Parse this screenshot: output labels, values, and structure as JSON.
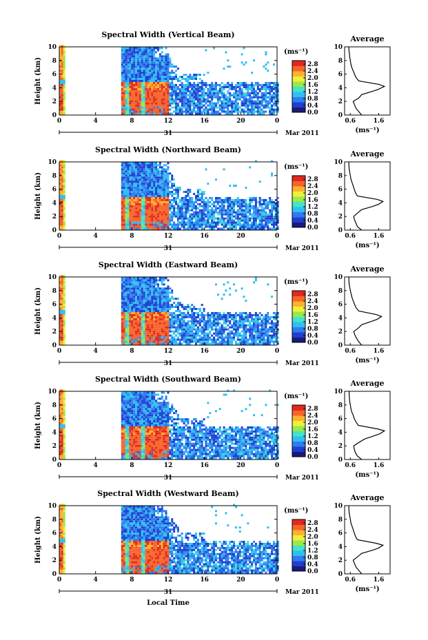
{
  "figure": {
    "xlabel": "Local Time",
    "day_label": "31",
    "month_label": "Mar 2011",
    "ylabel": "Height (km)",
    "unit_label": "(ms⁻¹)",
    "avg_title": "Average",
    "avg_xlabel": "(ms⁻¹)"
  },
  "chart_data": [
    {
      "type": "heatmap",
      "title": "Spectral Width (Vertical Beam)",
      "x_ticks": [
        "0",
        "4",
        "8",
        "12",
        "16",
        "20",
        "0"
      ],
      "xlim": [
        0,
        24
      ],
      "y_ticks": [
        "0",
        "2",
        "4",
        "6",
        "8",
        "10"
      ],
      "ylim": [
        0,
        10
      ],
      "colorbar": {
        "ticks": [
          "0.0",
          "0.4",
          "0.8",
          "1.2",
          "1.6",
          "2.0",
          "2.4",
          "2.8"
        ],
        "range": [
          0,
          3.0
        ]
      },
      "colorscale": [
        "#1a1a7a",
        "#1f3fd0",
        "#2f7cf0",
        "#2fbff2",
        "#44e2c8",
        "#9ae84a",
        "#eef03a",
        "#ffb030",
        "#f86428",
        "#e02a20"
      ],
      "average_profile": {
        "title": "Average",
        "x_ticks": [
          "0.6",
          "1.6"
        ],
        "xlim": [
          0.4,
          2.0
        ],
        "height_km": [
          0,
          0.5,
          1.0,
          1.5,
          2.0,
          2.5,
          3.0,
          3.5,
          3.8,
          4.2,
          4.5,
          5.0,
          5.5,
          6.0,
          6.5,
          7.0,
          7.5,
          8.0,
          8.5,
          9.0,
          9.5,
          10.0
        ],
        "width": [
          1.0,
          0.9,
          0.8,
          0.75,
          0.7,
          0.9,
          1.0,
          1.4,
          1.6,
          1.8,
          1.6,
          0.9,
          0.8,
          0.75,
          0.7,
          0.65,
          0.62,
          0.6,
          0.58,
          0.57,
          0.55,
          0.55
        ]
      }
    },
    {
      "type": "heatmap",
      "title": "Spectral Width (Northward Beam)",
      "x_ticks": [
        "0",
        "4",
        "8",
        "12",
        "16",
        "20",
        "0"
      ],
      "xlim": [
        0,
        24
      ],
      "y_ticks": [
        "0",
        "2",
        "4",
        "6",
        "8",
        "10"
      ],
      "ylim": [
        0,
        10
      ],
      "colorbar": {
        "ticks": [
          "0.0",
          "0.4",
          "0.8",
          "1.2",
          "1.6",
          "2.0",
          "2.4",
          "2.8"
        ],
        "range": [
          0,
          3.0
        ]
      },
      "colorscale": [
        "#1a1a7a",
        "#1f3fd0",
        "#2f7cf0",
        "#2fbff2",
        "#44e2c8",
        "#9ae84a",
        "#eef03a",
        "#ffb030",
        "#f86428",
        "#e02a20"
      ],
      "average_profile": {
        "title": "Average",
        "x_ticks": [
          "0.6",
          "1.6"
        ],
        "xlim": [
          0.4,
          2.0
        ],
        "height_km": [
          0,
          0.5,
          1.0,
          1.5,
          2.0,
          2.5,
          3.0,
          3.5,
          3.8,
          4.2,
          4.5,
          5.0,
          5.5,
          6.0,
          6.5,
          7.0,
          7.5,
          8.0,
          8.5,
          9.0,
          9.5,
          10.0
        ],
        "width": [
          1.0,
          0.85,
          0.8,
          0.75,
          0.72,
          0.85,
          1.0,
          1.4,
          1.6,
          1.75,
          1.55,
          0.85,
          0.78,
          0.74,
          0.7,
          0.66,
          0.62,
          0.6,
          0.58,
          0.56,
          0.55,
          0.55
        ]
      }
    },
    {
      "type": "heatmap",
      "title": "Spectral Width (Eastward Beam)",
      "x_ticks": [
        "0",
        "4",
        "8",
        "12",
        "16",
        "20",
        "0"
      ],
      "xlim": [
        0,
        24
      ],
      "y_ticks": [
        "0",
        "2",
        "4",
        "6",
        "8",
        "10"
      ],
      "ylim": [
        0,
        10
      ],
      "colorbar": {
        "ticks": [
          "0.0",
          "0.4",
          "0.8",
          "1.2",
          "1.6",
          "2.0",
          "2.4",
          "2.8"
        ],
        "range": [
          0,
          3.0
        ]
      },
      "colorscale": [
        "#1a1a7a",
        "#1f3fd0",
        "#2f7cf0",
        "#2fbff2",
        "#44e2c8",
        "#9ae84a",
        "#eef03a",
        "#ffb030",
        "#f86428",
        "#e02a20"
      ],
      "average_profile": {
        "title": "Average",
        "x_ticks": [
          "0.6",
          "1.6"
        ],
        "xlim": [
          0.4,
          2.0
        ],
        "height_km": [
          0,
          0.5,
          1.0,
          1.5,
          2.0,
          2.5,
          3.0,
          3.5,
          3.8,
          4.2,
          4.5,
          5.0,
          5.5,
          6.0,
          6.5,
          7.0,
          7.5,
          8.0,
          8.5,
          9.0,
          9.5,
          10.0
        ],
        "width": [
          1.0,
          0.9,
          0.82,
          0.76,
          0.72,
          0.88,
          1.0,
          1.35,
          1.55,
          1.7,
          1.5,
          0.9,
          0.8,
          0.75,
          0.7,
          0.66,
          0.63,
          0.6,
          0.58,
          0.56,
          0.55,
          0.55
        ]
      }
    },
    {
      "type": "heatmap",
      "title": "Spectral Width (Southward Beam)",
      "x_ticks": [
        "0",
        "4",
        "8",
        "12",
        "16",
        "20",
        "0"
      ],
      "xlim": [
        0,
        24
      ],
      "y_ticks": [
        "0",
        "2",
        "4",
        "6",
        "8",
        "10"
      ],
      "ylim": [
        0,
        10
      ],
      "colorbar": {
        "ticks": [
          "0.0",
          "0.4",
          "0.8",
          "1.2",
          "1.6",
          "2.0",
          "2.4",
          "2.8"
        ],
        "range": [
          0,
          3.0
        ]
      },
      "colorscale": [
        "#1a1a7a",
        "#1f3fd0",
        "#2f7cf0",
        "#2fbff2",
        "#44e2c8",
        "#9ae84a",
        "#eef03a",
        "#ffb030",
        "#f86428",
        "#e02a20"
      ],
      "average_profile": {
        "title": "Average",
        "x_ticks": [
          "0.6",
          "1.6"
        ],
        "xlim": [
          0.4,
          2.0
        ],
        "height_km": [
          0,
          0.5,
          1.0,
          1.5,
          2.0,
          2.5,
          3.0,
          3.5,
          3.8,
          4.2,
          4.5,
          5.0,
          5.5,
          6.0,
          6.5,
          7.0,
          7.5,
          8.0,
          8.5,
          9.0,
          9.5,
          10.0
        ],
        "width": [
          1.0,
          0.85,
          0.78,
          0.74,
          0.72,
          0.9,
          1.1,
          1.45,
          1.65,
          1.8,
          1.55,
          0.88,
          0.8,
          0.74,
          0.7,
          0.65,
          0.62,
          0.6,
          0.58,
          0.57,
          0.56,
          0.56
        ]
      }
    },
    {
      "type": "heatmap",
      "title": "Spectral Width (Westward Beam)",
      "x_ticks": [
        "0",
        "4",
        "8",
        "12",
        "16",
        "20",
        "0"
      ],
      "xlim": [
        0,
        24
      ],
      "y_ticks": [
        "0",
        "2",
        "4",
        "6",
        "8",
        "10"
      ],
      "ylim": [
        0,
        10
      ],
      "colorbar": {
        "ticks": [
          "0.0",
          "0.4",
          "0.8",
          "1.2",
          "1.6",
          "2.0",
          "2.4",
          "2.8"
        ],
        "range": [
          0,
          3.0
        ]
      },
      "colorscale": [
        "#1a1a7a",
        "#1f3fd0",
        "#2f7cf0",
        "#2fbff2",
        "#44e2c8",
        "#9ae84a",
        "#eef03a",
        "#ffb030",
        "#f86428",
        "#e02a20"
      ],
      "average_profile": {
        "title": "Average",
        "x_ticks": [
          "0.6",
          "1.6"
        ],
        "xlim": [
          0.4,
          2.0
        ],
        "height_km": [
          0,
          0.5,
          1.0,
          1.5,
          2.0,
          2.5,
          3.0,
          3.5,
          3.8,
          4.2,
          4.5,
          5.0,
          5.5,
          6.0,
          6.5,
          7.0,
          7.5,
          8.0,
          8.5,
          9.0,
          9.5,
          10.0
        ],
        "width": [
          1.0,
          0.9,
          0.8,
          0.75,
          0.7,
          0.85,
          1.0,
          1.4,
          1.6,
          1.75,
          1.5,
          0.85,
          0.78,
          0.74,
          0.7,
          0.66,
          0.62,
          0.6,
          0.58,
          0.56,
          0.55,
          0.55
        ]
      }
    }
  ]
}
